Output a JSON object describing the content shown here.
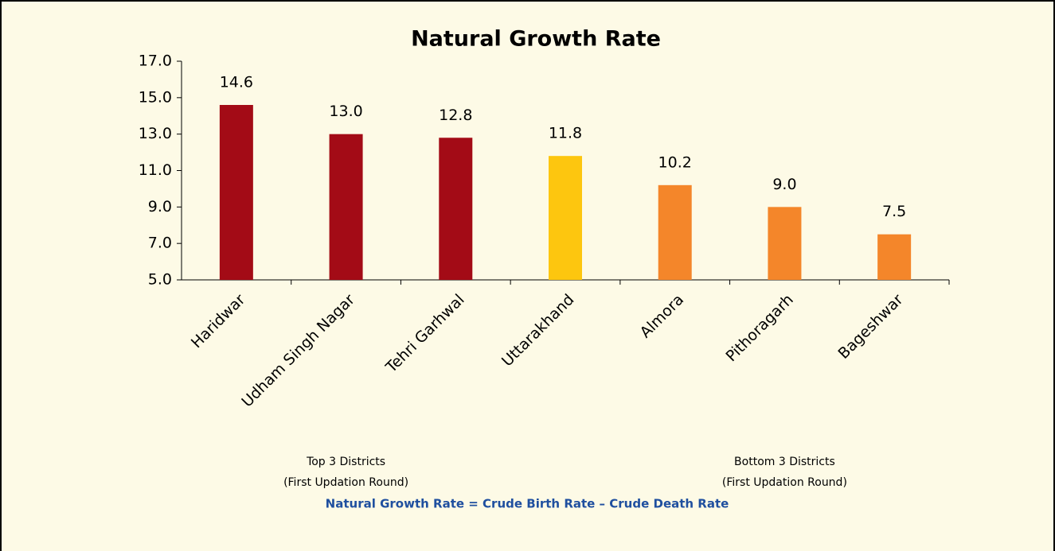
{
  "chart_data": {
    "type": "bar",
    "title": "Natural Growth Rate",
    "categories": [
      "Haridwar",
      "Udham Singh Nagar",
      "Tehri Garhwal",
      "Uttarakhand",
      "Almora",
      "Pithoragarh",
      "Bageshwar"
    ],
    "values": [
      14.6,
      13,
      12.8,
      11.8,
      10.2,
      9,
      7.5
    ],
    "value_labels": [
      "14.6",
      "13.0",
      "12.8",
      "11.8",
      "10.2",
      "9.0",
      "7.5"
    ],
    "colors": [
      "#a30b16",
      "#a30b16",
      "#a30b16",
      "#fdc60f",
      "#f4862a",
      "#f4862a",
      "#f4862a"
    ],
    "ylim": [
      5,
      17
    ],
    "yticks": [
      {
        "value": 5,
        "label": "5.0"
      },
      {
        "value": 7,
        "label": "7.0"
      },
      {
        "value": 9,
        "label": "9.0"
      },
      {
        "value": 11,
        "label": "11.0"
      },
      {
        "value": 13,
        "label": "13.0"
      },
      {
        "value": 15,
        "label": "15.0"
      },
      {
        "value": 17,
        "label": "17.0"
      }
    ],
    "grid": false,
    "annotations": [
      "Top 3 Districts",
      "(First Updation Round)",
      "Bottom 3 Districts",
      "(First Updation Round)"
    ],
    "footnote": "Natural Growth Rate = Crude Birth Rate – Crude Death Rate"
  }
}
